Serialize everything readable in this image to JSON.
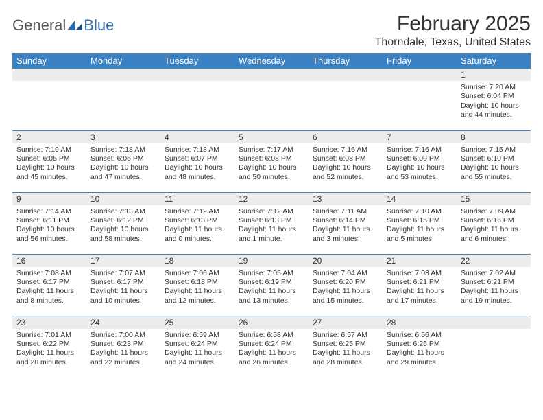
{
  "logo": {
    "text1": "General",
    "text2": "Blue"
  },
  "title": "February 2025",
  "location": "Thorndale, Texas, United States",
  "calendar": {
    "header_bg": "#3b82c4",
    "header_text_color": "#ffffff",
    "daynum_bg": "#ececec",
    "row_border_color": "#5a7a9a",
    "background": "#ffffff",
    "body_font_size": 10.5,
    "header_font_size": 13,
    "columns": [
      "Sunday",
      "Monday",
      "Tuesday",
      "Wednesday",
      "Thursday",
      "Friday",
      "Saturday"
    ],
    "weeks": [
      [
        {
          "n": "",
          "sunrise": "",
          "sunset": "",
          "daylight": ""
        },
        {
          "n": "",
          "sunrise": "",
          "sunset": "",
          "daylight": ""
        },
        {
          "n": "",
          "sunrise": "",
          "sunset": "",
          "daylight": ""
        },
        {
          "n": "",
          "sunrise": "",
          "sunset": "",
          "daylight": ""
        },
        {
          "n": "",
          "sunrise": "",
          "sunset": "",
          "daylight": ""
        },
        {
          "n": "",
          "sunrise": "",
          "sunset": "",
          "daylight": ""
        },
        {
          "n": "1",
          "sunrise": "Sunrise: 7:20 AM",
          "sunset": "Sunset: 6:04 PM",
          "daylight": "Daylight: 10 hours and 44 minutes."
        }
      ],
      [
        {
          "n": "2",
          "sunrise": "Sunrise: 7:19 AM",
          "sunset": "Sunset: 6:05 PM",
          "daylight": "Daylight: 10 hours and 45 minutes."
        },
        {
          "n": "3",
          "sunrise": "Sunrise: 7:18 AM",
          "sunset": "Sunset: 6:06 PM",
          "daylight": "Daylight: 10 hours and 47 minutes."
        },
        {
          "n": "4",
          "sunrise": "Sunrise: 7:18 AM",
          "sunset": "Sunset: 6:07 PM",
          "daylight": "Daylight: 10 hours and 48 minutes."
        },
        {
          "n": "5",
          "sunrise": "Sunrise: 7:17 AM",
          "sunset": "Sunset: 6:08 PM",
          "daylight": "Daylight: 10 hours and 50 minutes."
        },
        {
          "n": "6",
          "sunrise": "Sunrise: 7:16 AM",
          "sunset": "Sunset: 6:08 PM",
          "daylight": "Daylight: 10 hours and 52 minutes."
        },
        {
          "n": "7",
          "sunrise": "Sunrise: 7:16 AM",
          "sunset": "Sunset: 6:09 PM",
          "daylight": "Daylight: 10 hours and 53 minutes."
        },
        {
          "n": "8",
          "sunrise": "Sunrise: 7:15 AM",
          "sunset": "Sunset: 6:10 PM",
          "daylight": "Daylight: 10 hours and 55 minutes."
        }
      ],
      [
        {
          "n": "9",
          "sunrise": "Sunrise: 7:14 AM",
          "sunset": "Sunset: 6:11 PM",
          "daylight": "Daylight: 10 hours and 56 minutes."
        },
        {
          "n": "10",
          "sunrise": "Sunrise: 7:13 AM",
          "sunset": "Sunset: 6:12 PM",
          "daylight": "Daylight: 10 hours and 58 minutes."
        },
        {
          "n": "11",
          "sunrise": "Sunrise: 7:12 AM",
          "sunset": "Sunset: 6:13 PM",
          "daylight": "Daylight: 11 hours and 0 minutes."
        },
        {
          "n": "12",
          "sunrise": "Sunrise: 7:12 AM",
          "sunset": "Sunset: 6:13 PM",
          "daylight": "Daylight: 11 hours and 1 minute."
        },
        {
          "n": "13",
          "sunrise": "Sunrise: 7:11 AM",
          "sunset": "Sunset: 6:14 PM",
          "daylight": "Daylight: 11 hours and 3 minutes."
        },
        {
          "n": "14",
          "sunrise": "Sunrise: 7:10 AM",
          "sunset": "Sunset: 6:15 PM",
          "daylight": "Daylight: 11 hours and 5 minutes."
        },
        {
          "n": "15",
          "sunrise": "Sunrise: 7:09 AM",
          "sunset": "Sunset: 6:16 PM",
          "daylight": "Daylight: 11 hours and 6 minutes."
        }
      ],
      [
        {
          "n": "16",
          "sunrise": "Sunrise: 7:08 AM",
          "sunset": "Sunset: 6:17 PM",
          "daylight": "Daylight: 11 hours and 8 minutes."
        },
        {
          "n": "17",
          "sunrise": "Sunrise: 7:07 AM",
          "sunset": "Sunset: 6:17 PM",
          "daylight": "Daylight: 11 hours and 10 minutes."
        },
        {
          "n": "18",
          "sunrise": "Sunrise: 7:06 AM",
          "sunset": "Sunset: 6:18 PM",
          "daylight": "Daylight: 11 hours and 12 minutes."
        },
        {
          "n": "19",
          "sunrise": "Sunrise: 7:05 AM",
          "sunset": "Sunset: 6:19 PM",
          "daylight": "Daylight: 11 hours and 13 minutes."
        },
        {
          "n": "20",
          "sunrise": "Sunrise: 7:04 AM",
          "sunset": "Sunset: 6:20 PM",
          "daylight": "Daylight: 11 hours and 15 minutes."
        },
        {
          "n": "21",
          "sunrise": "Sunrise: 7:03 AM",
          "sunset": "Sunset: 6:21 PM",
          "daylight": "Daylight: 11 hours and 17 minutes."
        },
        {
          "n": "22",
          "sunrise": "Sunrise: 7:02 AM",
          "sunset": "Sunset: 6:21 PM",
          "daylight": "Daylight: 11 hours and 19 minutes."
        }
      ],
      [
        {
          "n": "23",
          "sunrise": "Sunrise: 7:01 AM",
          "sunset": "Sunset: 6:22 PM",
          "daylight": "Daylight: 11 hours and 20 minutes."
        },
        {
          "n": "24",
          "sunrise": "Sunrise: 7:00 AM",
          "sunset": "Sunset: 6:23 PM",
          "daylight": "Daylight: 11 hours and 22 minutes."
        },
        {
          "n": "25",
          "sunrise": "Sunrise: 6:59 AM",
          "sunset": "Sunset: 6:24 PM",
          "daylight": "Daylight: 11 hours and 24 minutes."
        },
        {
          "n": "26",
          "sunrise": "Sunrise: 6:58 AM",
          "sunset": "Sunset: 6:24 PM",
          "daylight": "Daylight: 11 hours and 26 minutes."
        },
        {
          "n": "27",
          "sunrise": "Sunrise: 6:57 AM",
          "sunset": "Sunset: 6:25 PM",
          "daylight": "Daylight: 11 hours and 28 minutes."
        },
        {
          "n": "28",
          "sunrise": "Sunrise: 6:56 AM",
          "sunset": "Sunset: 6:26 PM",
          "daylight": "Daylight: 11 hours and 29 minutes."
        },
        {
          "n": "",
          "sunrise": "",
          "sunset": "",
          "daylight": ""
        }
      ]
    ]
  }
}
